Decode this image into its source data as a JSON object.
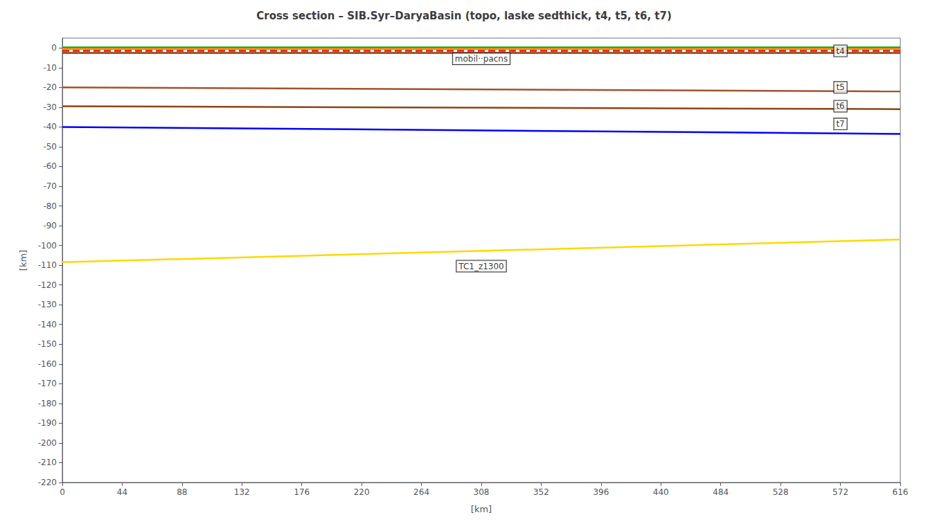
{
  "chart_data": {
    "type": "line",
    "title": "Cross section – SIB.Syr–DaryaBasin (topo, laske sedthick, t4, t5, t6, t7)",
    "xlabel": "[km]",
    "ylabel": "[km]",
    "x": [
      0,
      616
    ],
    "series": [
      {
        "color": "#00aa00",
        "values": [
          0.3,
          0.3
        ]
      },
      {
        "color": "#FF8C00",
        "values": [
          -0.5,
          -0.5
        ]
      },
      {
        "color": "#FF0000",
        "values": [
          -1.5,
          -1.5
        ],
        "line_style": "dashed"
      },
      {
        "color": "#8B3A0A",
        "values": [
          -2.5,
          -2.5
        ]
      },
      {
        "color": "#A0522D",
        "values": [
          -20.0,
          -22.0
        ]
      },
      {
        "color": "#8B4513",
        "values": [
          -29.5,
          -31.0
        ]
      },
      {
        "color": "#0000FF",
        "values": [
          -40.0,
          -43.5
        ]
      },
      {
        "color": "#FFD700",
        "values": [
          -108.5,
          -97.0
        ]
      }
    ],
    "xlim": [
      0,
      616
    ],
    "ylim": [
      -220,
      5
    ],
    "xticks": [
      0,
      44,
      88,
      132,
      176,
      220,
      264,
      308,
      352,
      396,
      440,
      484,
      528,
      572,
      616
    ],
    "yticks": [
      0,
      -10,
      -20,
      -30,
      -40,
      -50,
      -60,
      -70,
      -80,
      -90,
      -100,
      -110,
      -120,
      -130,
      -140,
      -150,
      -160,
      -170,
      -180,
      -190,
      -200,
      -210,
      -220
    ],
    "grid": false,
    "annotations": [
      {
        "text": "t4",
        "x": 572,
        "y": -1.5
      },
      {
        "text": "mobil··pacns",
        "x": 308,
        "y": -5.5
      },
      {
        "text": "t5",
        "x": 572,
        "y": -20.0
      },
      {
        "text": "t6",
        "x": 572,
        "y": -29.5
      },
      {
        "text": "t7",
        "x": 572,
        "y": -38.5
      },
      {
        "text": "TC1_z1300",
        "x": 308,
        "y": -110.5
      }
    ]
  }
}
